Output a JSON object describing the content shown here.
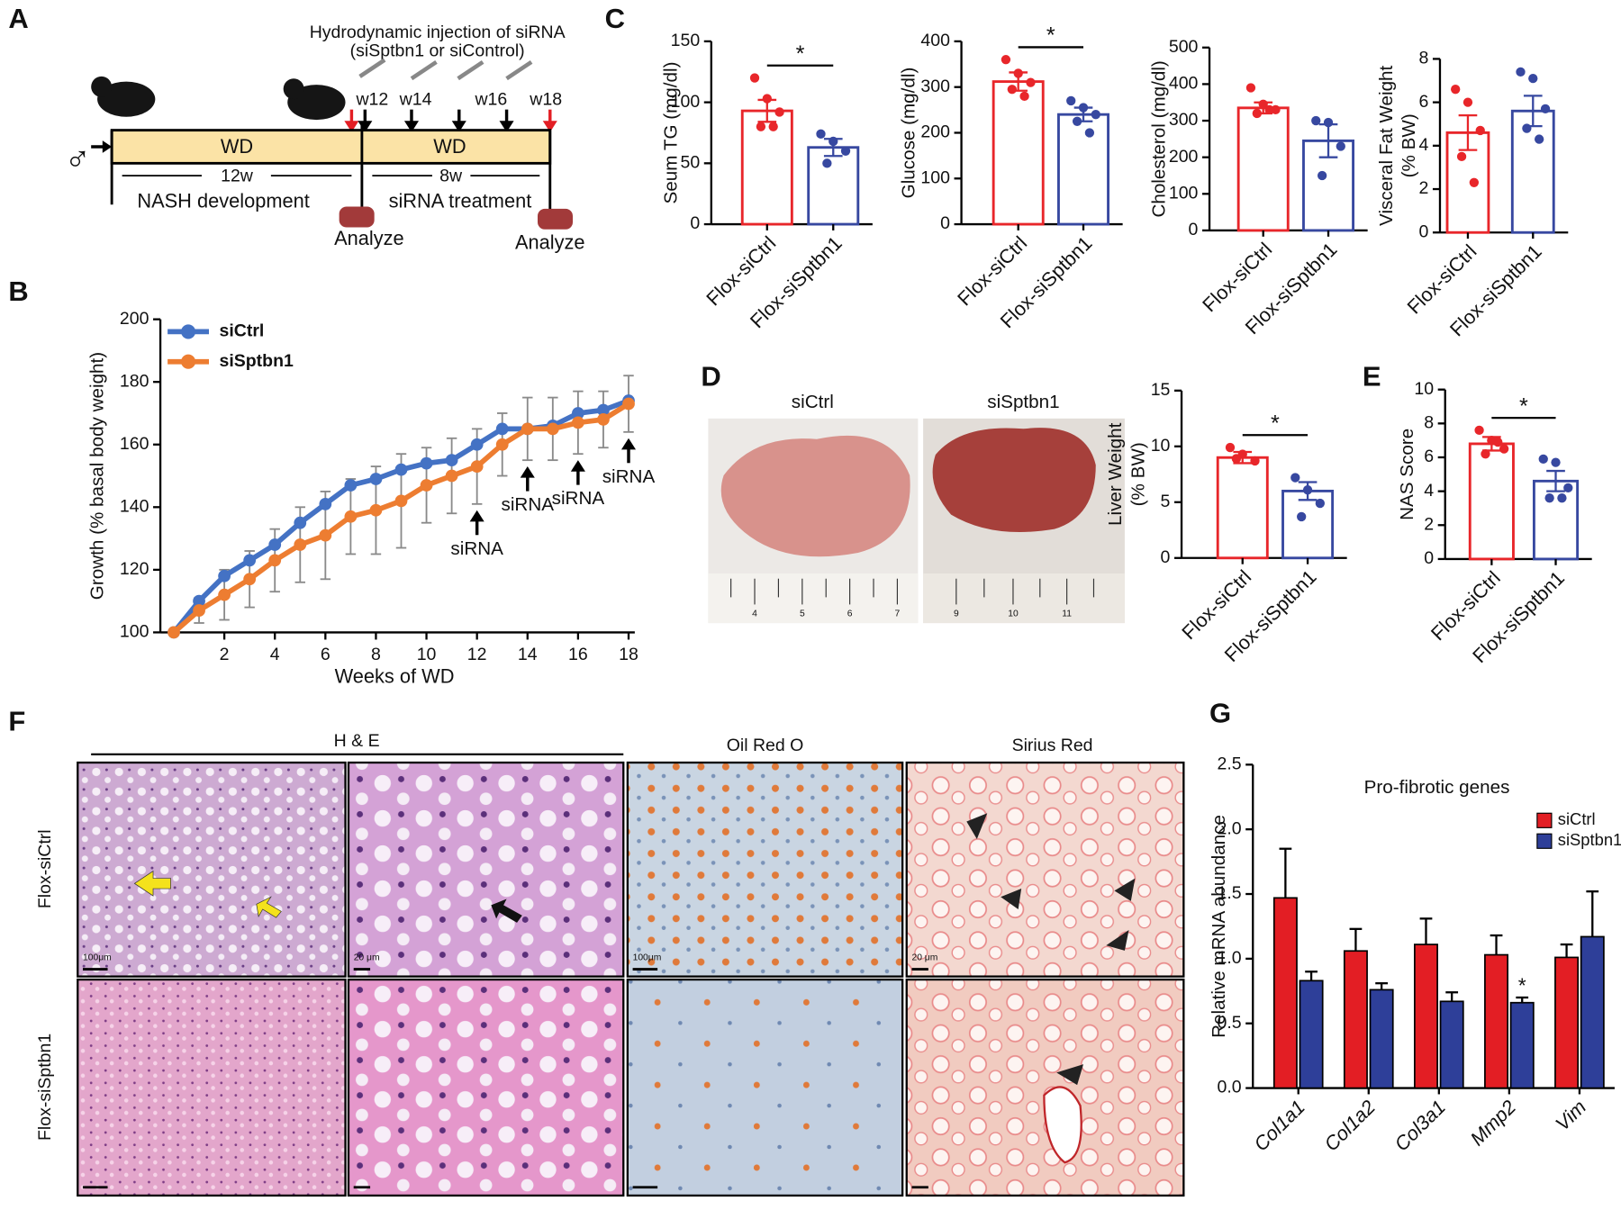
{
  "figure": {
    "panel_labels": [
      "A",
      "B",
      "C",
      "D",
      "E",
      "F",
      "G"
    ],
    "timeline": {
      "injection_title": "Hydrodynamic injection of siRNA",
      "injection_subtitle": "(siSptbn1 or siControl)",
      "weeks": [
        "w12",
        "w14",
        "w16",
        "w18"
      ],
      "diet": [
        "WD",
        "WD"
      ],
      "durations": [
        "12w",
        "8w"
      ],
      "phases": [
        "NASH development",
        "siRNA treatment"
      ],
      "analyze": [
        "Analyze",
        "Analyze"
      ],
      "sex": "♂"
    },
    "liver_photos": {
      "labels": [
        "siCtrl",
        "siSptbn1"
      ],
      "ruler": [
        "4",
        "5",
        "6",
        "7",
        "9",
        "10",
        "11"
      ]
    },
    "histology": {
      "stains": [
        "H & E",
        "Oil Red O",
        "Sirius Red"
      ],
      "rows": [
        "Flox-siCtrl",
        "Flox-siSptbn1"
      ],
      "scale_bars": [
        "100μm",
        "20 μm",
        "100μm",
        "20 μm"
      ]
    }
  },
  "chart_data": [
    {
      "type": "line",
      "xlabel": "Weeks of WD",
      "ylabel": "Growth (% basal body weight)",
      "x": [
        0,
        1,
        2,
        3,
        4,
        5,
        6,
        7,
        8,
        9,
        10,
        11,
        12,
        13,
        14,
        15,
        16,
        17,
        18
      ],
      "series": [
        {
          "name": "siCtrl",
          "color": "#4472c4",
          "values": [
            100,
            110,
            118,
            123,
            128,
            135,
            141,
            147,
            149,
            152,
            154,
            155,
            160,
            165,
            165,
            166,
            170,
            171,
            174
          ]
        },
        {
          "name": "siSptbn1",
          "color": "#ed7d31",
          "values": [
            100,
            107,
            112,
            117,
            123,
            128,
            131,
            137,
            139,
            142,
            147,
            150,
            153,
            160,
            165,
            165,
            167,
            168,
            173
          ],
          "errors": [
            0,
            4,
            8,
            9,
            10,
            12,
            14,
            12,
            14,
            15,
            12,
            12,
            12,
            10,
            10,
            10,
            10,
            9,
            9
          ]
        }
      ],
      "xlim": [
        0,
        18
      ],
      "ylim": [
        100,
        200
      ],
      "xticks": [
        2,
        4,
        6,
        8,
        10,
        12,
        14,
        16,
        18
      ],
      "yticks": [
        100,
        120,
        140,
        160,
        180,
        200
      ],
      "annotations": [
        {
          "text": "siRNA",
          "x": 12
        },
        {
          "text": "siRNA",
          "x": 14
        },
        {
          "text": "siRNA",
          "x": 16
        },
        {
          "text": "siRNA",
          "x": 18
        }
      ]
    },
    {
      "type": "bar",
      "ylabel": "Seum TG (mg/dl)",
      "categories": [
        "Flox-siCtrl",
        "Flox-siSptbn1"
      ],
      "colors": [
        "#e8262a",
        "#3748a0"
      ],
      "values": [
        93,
        63
      ],
      "errors": [
        9,
        7
      ],
      "points": [
        [
          120,
          103,
          92,
          80,
          80
        ],
        [
          74,
          68,
          60,
          50
        ]
      ],
      "ylim": [
        0,
        150
      ],
      "yticks": [
        0,
        50,
        100,
        150
      ],
      "significance": "*"
    },
    {
      "type": "bar",
      "ylabel": "Glucose (mg/dl)",
      "categories": [
        "Flox-siCtrl",
        "Flox-siSptbn1"
      ],
      "colors": [
        "#e8262a",
        "#3748a0"
      ],
      "values": [
        312,
        240
      ],
      "errors": [
        20,
        15
      ],
      "points": [
        [
          360,
          330,
          310,
          295,
          280
        ],
        [
          270,
          255,
          240,
          225,
          200
        ]
      ],
      "ylim": [
        0,
        400
      ],
      "yticks": [
        0,
        100,
        200,
        300,
        400
      ],
      "significance": "*"
    },
    {
      "type": "bar",
      "ylabel": "Cholesterol (mg/dl)",
      "categories": [
        "Flox-siCtrl",
        "Flox-siSptbn1"
      ],
      "colors": [
        "#e8262a",
        "#3748a0"
      ],
      "values": [
        335,
        245
      ],
      "errors": [
        15,
        45
      ],
      "points": [
        [
          390,
          345,
          330,
          320,
          330
        ],
        [
          300,
          295,
          230,
          150
        ]
      ],
      "ylim": [
        0,
        500
      ],
      "yticks": [
        0,
        100,
        200,
        300,
        400,
        500
      ]
    },
    {
      "type": "bar",
      "ylabel": [
        "Visceral Fat Weight",
        "(% BW)"
      ],
      "categories": [
        "Flox-siCtrl",
        "Flox-siSptbn1"
      ],
      "colors": [
        "#e8262a",
        "#3748a0"
      ],
      "values": [
        4.6,
        5.6
      ],
      "errors": [
        0.8,
        0.7
      ],
      "points": [
        [
          6.6,
          6.0,
          4.7,
          3.5,
          2.3
        ],
        [
          7.4,
          7.1,
          5.7,
          4.8,
          4.3
        ]
      ],
      "ylim": [
        0,
        8
      ],
      "yticks": [
        0,
        2,
        4,
        6,
        8
      ]
    },
    {
      "type": "bar",
      "ylabel": [
        "Liver Weight",
        "(% BW)"
      ],
      "categories": [
        "Flox-siCtrl",
        "Flox-siSptbn1"
      ],
      "colors": [
        "#e8262a",
        "#3748a0"
      ],
      "values": [
        9,
        6
      ],
      "errors": [
        0.5,
        0.8
      ],
      "points": [
        [
          9.9,
          9.3,
          8.7,
          8.9
        ],
        [
          7.2,
          6.1,
          4.9,
          3.7
        ]
      ],
      "ylim": [
        0,
        15
      ],
      "yticks": [
        0,
        5,
        10,
        15
      ],
      "significance": "*"
    },
    {
      "type": "bar",
      "ylabel": "NAS Score",
      "categories": [
        "Flox-siCtrl",
        "Flox-siSptbn1"
      ],
      "colors": [
        "#e8262a",
        "#3748a0"
      ],
      "values": [
        6.8,
        4.6
      ],
      "errors": [
        0.4,
        0.6
      ],
      "points": [
        [
          7.6,
          7.0,
          6.5,
          6.2,
          6.9
        ],
        [
          5.9,
          5.7,
          4.2,
          3.6,
          3.6
        ]
      ],
      "ylim": [
        0,
        10
      ],
      "yticks": [
        0,
        2,
        4,
        6,
        8,
        10
      ],
      "significance": "*"
    },
    {
      "type": "grouped-bar",
      "title": "Pro-fibrotic genes",
      "ylabel": "Relative mRNA abundance",
      "categories": [
        "Col1a1",
        "Col1a2",
        "Col3a1",
        "Mmp2",
        "Vim"
      ],
      "series": [
        {
          "name": "siCtrl",
          "color": "#e31e24",
          "values": [
            1.47,
            1.06,
            1.11,
            1.03,
            1.01
          ],
          "errors": [
            0.38,
            0.17,
            0.2,
            0.15,
            0.1
          ]
        },
        {
          "name": "siSptbn1",
          "color": "#2e3f99",
          "values": [
            0.83,
            0.76,
            0.67,
            0.66,
            1.17
          ],
          "errors": [
            0.07,
            0.05,
            0.07,
            0.04,
            0.35
          ],
          "significance": [
            null,
            null,
            null,
            "*",
            null
          ]
        }
      ],
      "ylim": [
        0,
        2.5
      ],
      "yticks": [
        {
          "value": 0,
          "label": "0.0"
        },
        0.5,
        {
          "value": 1,
          "label": "1.0"
        },
        1.5,
        {
          "value": 2,
          "label": "2.0"
        },
        2.5
      ]
    }
  ]
}
